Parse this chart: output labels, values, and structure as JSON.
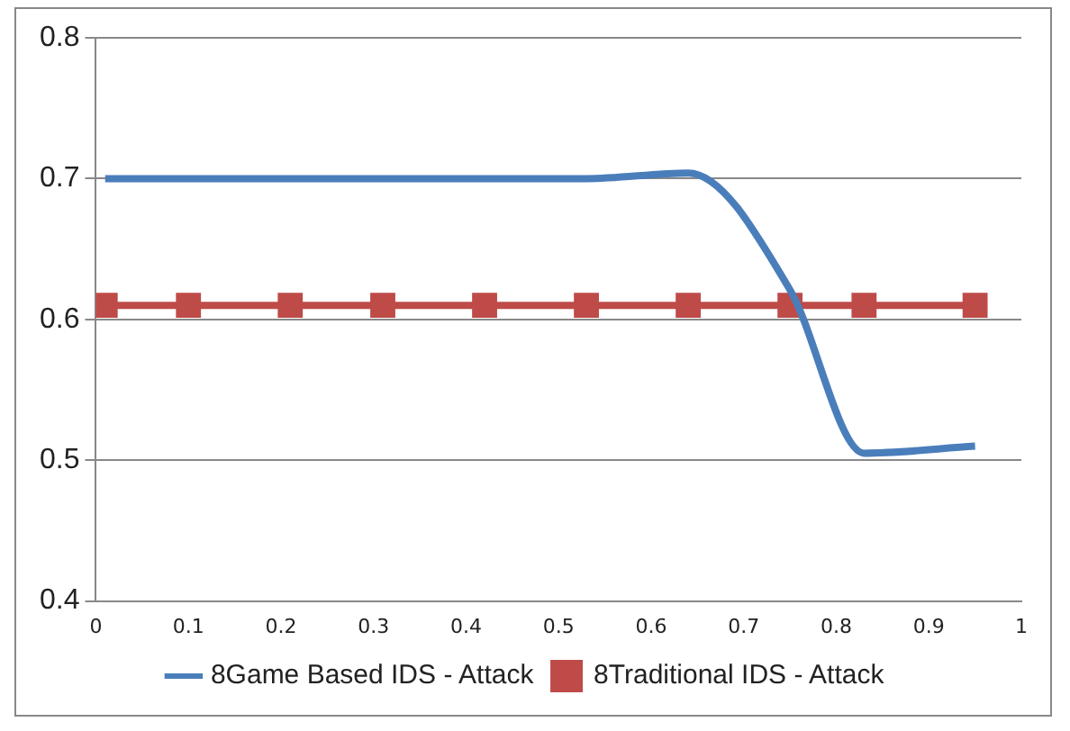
{
  "chart_data": {
    "type": "line",
    "x": [
      0.01,
      0.1,
      0.21,
      0.31,
      0.42,
      0.53,
      0.64,
      0.75,
      0.83,
      0.95
    ],
    "series": [
      {
        "name": "8Game Based IDS - Attack",
        "color": "#4a7ebb",
        "values": [
          0.7,
          0.7,
          0.7,
          0.7,
          0.7,
          0.7,
          0.704,
          0.621,
          0.505,
          0.51
        ],
        "marker": "none"
      },
      {
        "name": "8Traditional IDS - Attack",
        "color": "#be4b48",
        "values": [
          0.61,
          0.61,
          0.61,
          0.61,
          0.61,
          0.61,
          0.61,
          0.61,
          0.61,
          0.61
        ],
        "marker": "square"
      }
    ],
    "xlim": [
      0,
      1
    ],
    "xticks": [
      0,
      0.1,
      0.2,
      0.3,
      0.4,
      0.5,
      0.6,
      0.7,
      0.8,
      0.9,
      1
    ],
    "ylim": [
      0.4,
      0.8
    ],
    "yticks": [
      0.4,
      0.5,
      0.6,
      0.7,
      0.8
    ],
    "grid": "y",
    "legend": "bottom"
  }
}
